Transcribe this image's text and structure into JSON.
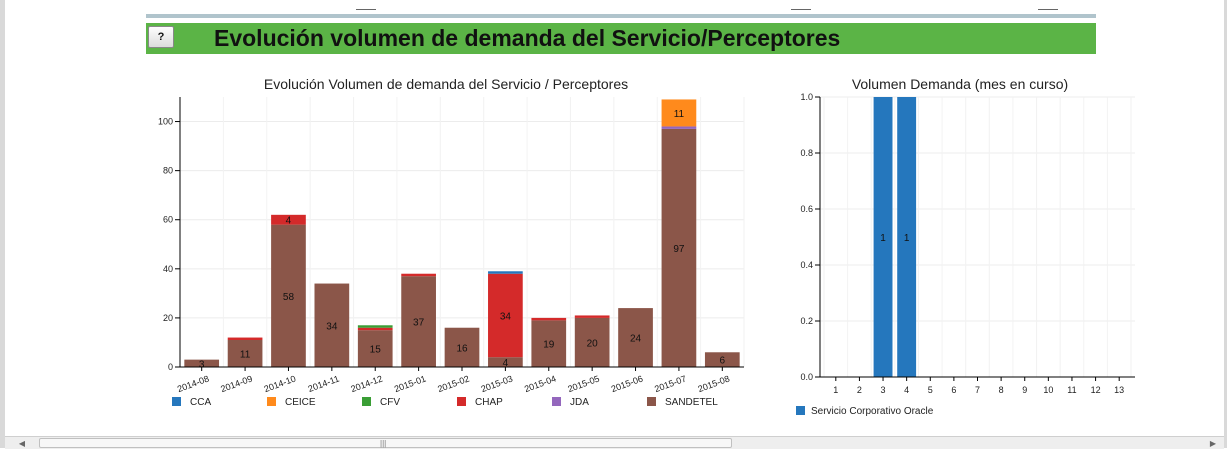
{
  "header": {
    "help_label": "?",
    "title": "Evolución volumen de demanda del Servicio/Perceptores",
    "bg_color": "#5bb446"
  },
  "colors": {
    "CCA": "#2577bd",
    "CEICE": "#ff8a1c",
    "CFV": "#3a9e35",
    "CHAP": "#d42a2a",
    "JDA": "#9467bd",
    "SANDETEL": "#8b5649",
    "oracle": "#2577bd"
  },
  "chart_data": [
    {
      "type": "bar",
      "stacked": true,
      "title": "Evolución Volumen de demanda del Servicio / Perceptores",
      "categories": [
        "2014-08",
        "2014-09",
        "2014-10",
        "2014-11",
        "2014-12",
        "2015-01",
        "2015-02",
        "2015-03",
        "2015-04",
        "2015-05",
        "2015-06",
        "2015-07",
        "2015-08"
      ],
      "ylim": [
        0,
        110
      ],
      "yticks": [
        0,
        20,
        40,
        60,
        80,
        100
      ],
      "grid": true,
      "legend_position": "bottom",
      "series": [
        {
          "name": "SANDETEL",
          "values": [
            3,
            11,
            58,
            34,
            15,
            37,
            16,
            4,
            19,
            20,
            24,
            97,
            6
          ]
        },
        {
          "name": "JDA",
          "values": [
            0,
            0,
            0,
            0,
            0,
            0,
            0,
            0,
            0,
            0,
            0,
            1,
            0
          ]
        },
        {
          "name": "CHAP",
          "values": [
            0,
            1,
            4,
            0,
            1,
            1,
            0,
            34,
            1,
            1,
            0,
            0,
            0
          ]
        },
        {
          "name": "CFV",
          "values": [
            0,
            0,
            0,
            0,
            1,
            0,
            0,
            0,
            0,
            0,
            0,
            0,
            0
          ]
        },
        {
          "name": "CEICE",
          "values": [
            0,
            0,
            0,
            0,
            0,
            0,
            0,
            0,
            0,
            0,
            0,
            11,
            0
          ]
        },
        {
          "name": "CCA",
          "values": [
            0,
            0,
            0,
            0,
            0,
            0,
            0,
            1,
            0,
            0,
            0,
            0,
            0
          ]
        }
      ],
      "legend": [
        "CCA",
        "CEICE",
        "CFV",
        "CHAP",
        "JDA",
        "SANDETEL"
      ]
    },
    {
      "type": "bar",
      "title": "Volumen Demanda (mes en curso)",
      "categories": [
        "1",
        "2",
        "3",
        "4",
        "5",
        "6",
        "7",
        "8",
        "9",
        "10",
        "11",
        "12",
        "13"
      ],
      "ylim": [
        0,
        1.0
      ],
      "yticks": [
        "0.0",
        "0.2",
        "0.4",
        "0.6",
        "0.8",
        "1.0"
      ],
      "grid": true,
      "legend_position": "bottom",
      "series": [
        {
          "name": "Servicio Corporativo Oracle",
          "values": [
            0,
            0,
            1,
            1,
            0,
            0,
            0,
            0,
            0,
            0,
            0,
            0,
            0
          ]
        }
      ]
    }
  ]
}
